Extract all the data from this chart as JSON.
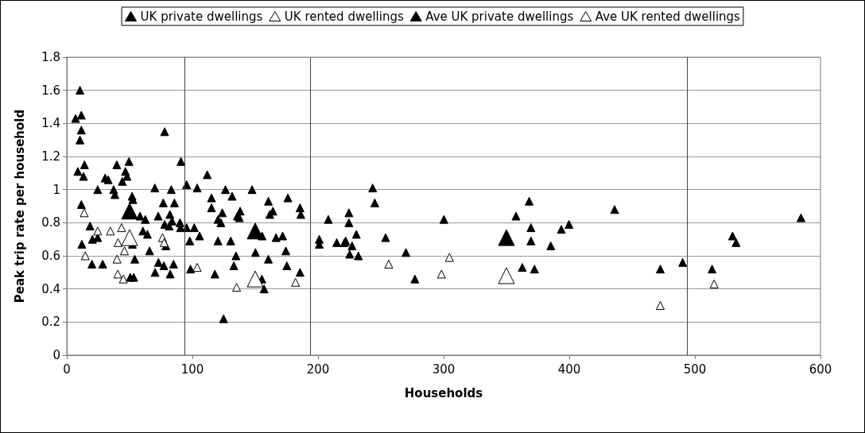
{
  "chart_data": {
    "type": "scatter",
    "xlabel": "Households",
    "ylabel": "Peak trip rate per household",
    "xlim": [
      0,
      600
    ],
    "xticks": [
      0,
      100,
      200,
      300,
      400,
      500,
      600
    ],
    "ylim": [
      0,
      1.8
    ],
    "yticks": [
      0,
      0.2,
      0.4,
      0.6,
      0.8,
      1,
      1.2,
      1.4,
      1.6,
      1.8
    ],
    "grid": "y",
    "legend": "top",
    "marker": "triangle",
    "ref_lines": [
      {
        "axis": "x",
        "value": 94,
        "color": "#404040"
      },
      {
        "axis": "x",
        "value": 194,
        "color": "#404040"
      },
      {
        "axis": "x",
        "value": 494,
        "color": "#404040"
      }
    ],
    "series": [
      {
        "name": "UK private dwellings",
        "color": "#000000",
        "x": [
          7,
          10.5,
          11.6,
          11.6,
          10.5,
          8.8,
          14.1,
          13.3,
          11.6,
          12,
          18.5,
          20.4,
          24.6,
          20,
          28.6,
          24.6,
          30.5,
          33,
          37.3,
          38.3,
          39.8,
          44.2,
          46.7,
          48,
          49.5,
          52,
          52.6,
          58.3,
          62.5,
          60.6,
          64.2,
          65.9,
          54.1,
          50.5,
          53.3,
          52.2,
          70.1,
          72.8,
          73,
          70.3,
          77.3,
          78.9,
          76.8,
          77.9,
          82.3,
          85,
          83.2,
          85.7,
          82.1,
          83.8,
          77.9,
          81.5,
          90.1,
          90.5,
          90.9,
          95.4,
          95.4,
          101.5,
          105.7,
          97.9,
          98.5,
          103.8,
          111.8,
          115.2,
          115.2,
          120.4,
          123.8,
          122.7,
          120.4,
          117.9,
          126.3,
          131.6,
          130.5,
          134.7,
          133,
          124.8,
          135.8,
          147.5,
          138,
          137.4,
          155.5,
          150.2,
          160.5,
          164.1,
          161.6,
          166.6,
          171.8,
          176,
          185.7,
          186.3,
          174.4,
          160.5,
          175.2,
          185.7,
          155.3,
          157.1,
          201,
          201,
          208.2,
          214.9,
          221,
          222,
          224.6,
          224.6,
          230.5,
          227.1,
          225.2,
          232.1,
          243.5,
          245.2,
          253.8,
          270,
          277.1,
          300.2,
          368.1,
          357.6,
          369.5,
          369.5,
          385.3,
          393.7,
          399.8,
          436.1,
          362.6,
          372.3,
          472.5,
          490.3,
          513.7,
          530,
          532.8,
          584.5
        ],
        "values": [
          1.43,
          1.6,
          1.45,
          1.36,
          1.3,
          1.11,
          1.15,
          1.08,
          0.91,
          0.67,
          0.78,
          0.7,
          0.71,
          0.55,
          0.55,
          1,
          1.07,
          1.06,
          1,
          0.97,
          1.15,
          1.05,
          1.11,
          1.08,
          1.17,
          0.96,
          0.94,
          0.84,
          0.82,
          0.75,
          0.73,
          0.63,
          0.58,
          0.47,
          0.47,
          0.67,
          1.01,
          0.84,
          0.56,
          0.5,
          0.54,
          0.66,
          0.92,
          1.35,
          0.49,
          0.55,
          1,
          0.92,
          0.85,
          0.81,
          0.79,
          0.78,
          0.8,
          0.77,
          1.17,
          1.03,
          0.77,
          0.77,
          0.72,
          0.69,
          0.52,
          1.01,
          1.09,
          0.95,
          0.89,
          0.82,
          0.86,
          0.8,
          0.69,
          0.49,
          1,
          0.96,
          0.69,
          0.6,
          0.54,
          0.22,
          0.84,
          1,
          0.87,
          0.83,
          0.72,
          0.62,
          0.93,
          0.87,
          0.85,
          0.71,
          0.72,
          0.95,
          0.89,
          0.85,
          0.63,
          0.58,
          0.54,
          0.5,
          0.46,
          0.4,
          0.7,
          0.67,
          0.82,
          0.68,
          0.68,
          0.69,
          0.86,
          0.8,
          0.73,
          0.66,
          0.61,
          0.6,
          1.01,
          0.92,
          0.71,
          0.62,
          0.46,
          0.82,
          0.93,
          0.84,
          0.77,
          0.69,
          0.66,
          0.76,
          0.79,
          0.88,
          0.53,
          0.52,
          0.52,
          0.56,
          0.52,
          0.72,
          0.68,
          0.83
        ]
      },
      {
        "name": "UK rented dwellings",
        "color": "#ffffff",
        "x": [
          13.9,
          14.7,
          24.6,
          34.7,
          43.6,
          40.8,
          45.9,
          40,
          40.6,
          45,
          76.2,
          77.5,
          103.8,
          135.2,
          182.1,
          256.3,
          304.6,
          298.3,
          472.5,
          515.3
        ],
        "values": [
          0.86,
          0.6,
          0.75,
          0.75,
          0.77,
          0.68,
          0.63,
          0.58,
          0.49,
          0.46,
          0.71,
          0.68,
          0.53,
          0.41,
          0.44,
          0.55,
          0.59,
          0.49,
          0.3,
          0.43
        ]
      },
      {
        "name": "Ave UK private dwellings",
        "color": "#000000",
        "x": [
          50,
          150,
          350
        ],
        "values": [
          0.87,
          0.75,
          0.71
        ]
      },
      {
        "name": "Ave UK rented dwellings",
        "color": "#ffffff",
        "x": [
          50,
          150,
          350
        ],
        "values": [
          0.71,
          0.46,
          0.48
        ]
      }
    ]
  }
}
